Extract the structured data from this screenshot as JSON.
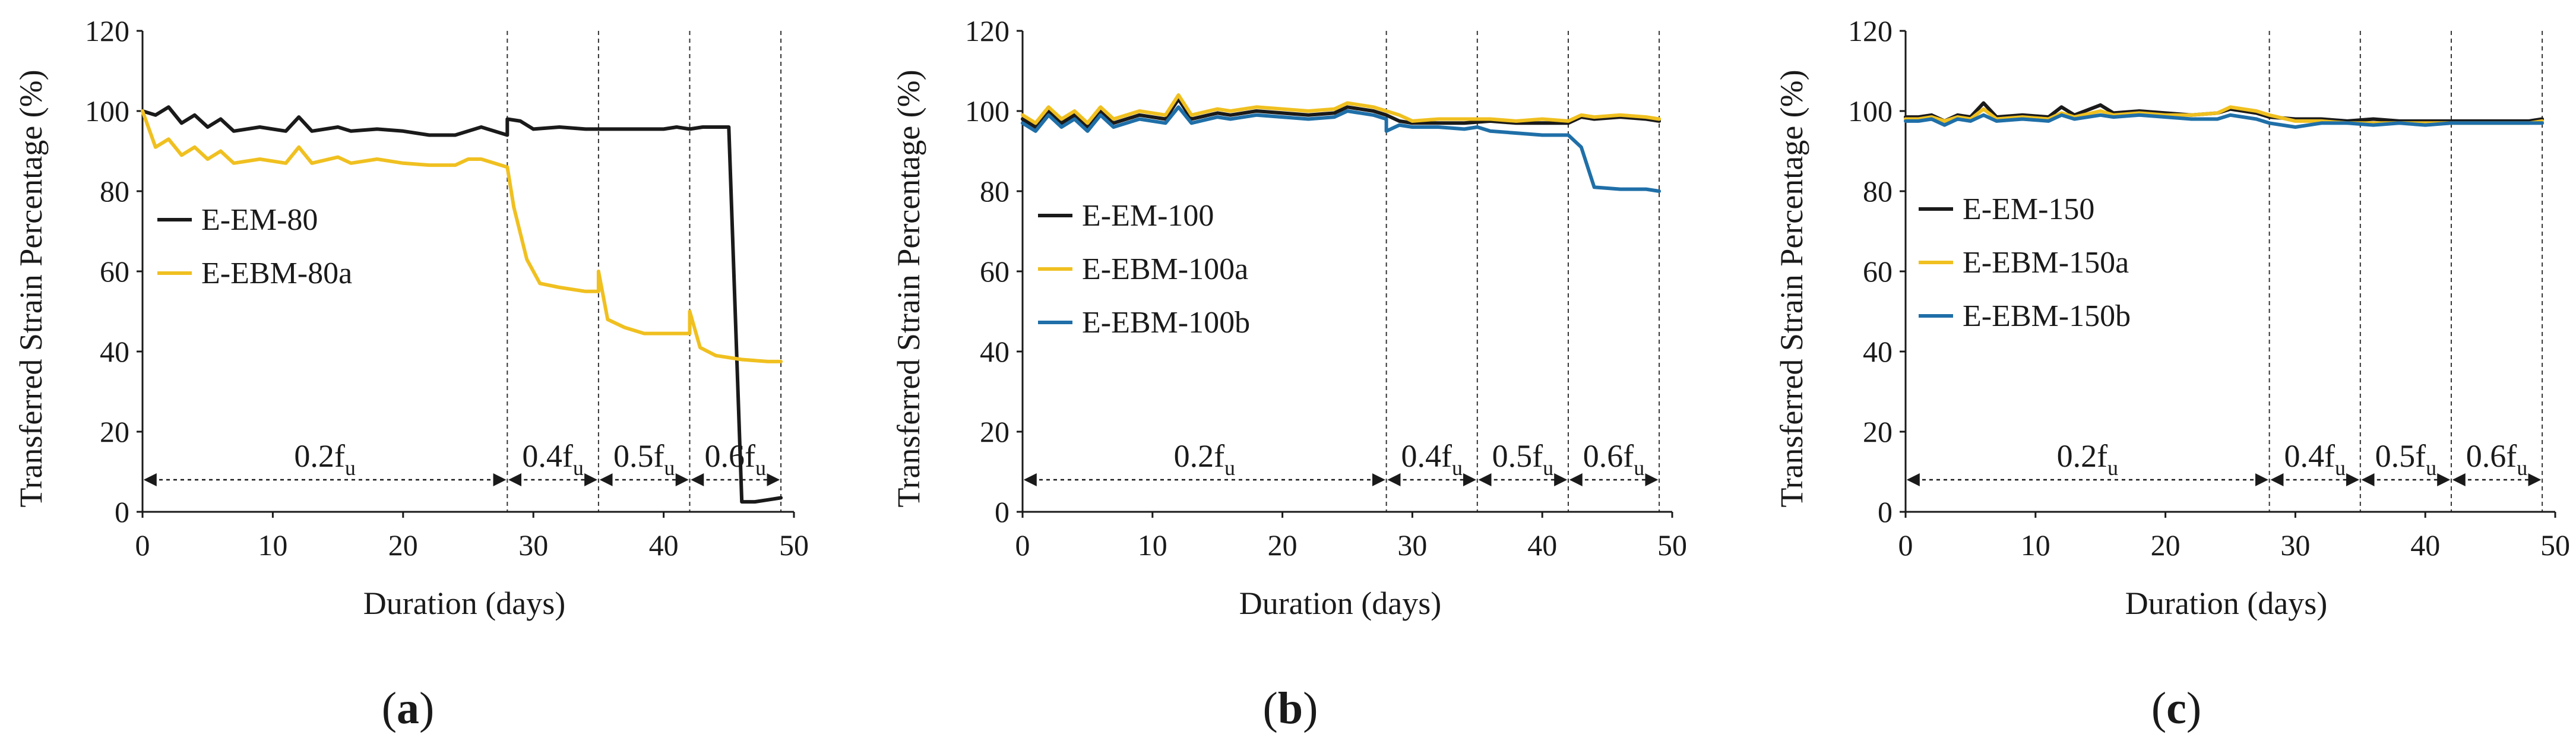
{
  "chart_data": [
    {
      "type": "line",
      "panel": "a",
      "panel_label": "(a)",
      "xlabel": "Duration (days)",
      "ylabel": "Transferred Strain Percentage (%)",
      "xlim": [
        0,
        50
      ],
      "ylim": [
        0,
        120
      ],
      "xticks": [
        0,
        10,
        20,
        30,
        40,
        50
      ],
      "yticks": [
        0,
        20,
        40,
        60,
        80,
        100,
        120
      ],
      "legend_position": "middle-left",
      "stage_boundaries": [
        28,
        35,
        42,
        49
      ],
      "stages": [
        {
          "label": "0.2f",
          "sub": "u",
          "from": 0,
          "to": 28
        },
        {
          "label": "0.4f",
          "sub": "u",
          "from": 28,
          "to": 35
        },
        {
          "label": "0.5f",
          "sub": "u",
          "from": 35,
          "to": 42
        },
        {
          "label": "0.6f",
          "sub": "u",
          "from": 42,
          "to": 49
        }
      ],
      "stage_arrow_y": 8,
      "series": [
        {
          "name": "E-EM-80",
          "color": "#1a1a1a",
          "x": [
            0,
            1,
            2,
            3,
            4,
            5,
            6,
            7,
            9,
            11,
            12,
            13,
            15,
            16,
            18,
            20,
            22,
            24,
            25,
            26,
            28,
            28,
            29,
            30,
            32,
            34,
            36,
            38,
            40,
            41,
            42,
            43,
            45,
            46,
            47,
            48,
            49
          ],
          "y": [
            100,
            99,
            101,
            97,
            99,
            96,
            98,
            95,
            96,
            95,
            98.5,
            95,
            96,
            95,
            95.5,
            95,
            94,
            94,
            95,
            96,
            94,
            98,
            97.5,
            95.5,
            96,
            95.5,
            95.5,
            95.5,
            95.5,
            96,
            95.5,
            96,
            96,
            2.5,
            2.5,
            3,
            3.5
          ]
        },
        {
          "name": "E-EBM-80a",
          "color": "#f0c020",
          "x": [
            0,
            1,
            2,
            3,
            4,
            5,
            6,
            7,
            9,
            11,
            12,
            13,
            15,
            16,
            18,
            20,
            22,
            24,
            25,
            26,
            28,
            28.5,
            29.5,
            30.5,
            32,
            34,
            35,
            35,
            35.7,
            37,
            38.5,
            40,
            41,
            42,
            42,
            42.8,
            44,
            46,
            48,
            49
          ],
          "y": [
            100,
            91,
            93,
            89,
            91,
            88,
            90,
            87,
            88,
            87,
            91,
            87,
            88.5,
            87,
            88,
            87,
            86.5,
            86.5,
            88,
            88,
            86,
            76,
            63,
            57,
            56,
            55,
            55,
            60,
            48,
            46,
            44.5,
            44.5,
            44.5,
            44.5,
            50,
            41,
            39,
            38,
            37.5,
            37.5
          ]
        }
      ]
    },
    {
      "type": "line",
      "panel": "b",
      "panel_label": "(b)",
      "xlabel": "Duration (days)",
      "ylabel": "Transferred Strain Percentage (%)",
      "xlim": [
        0,
        50
      ],
      "ylim": [
        0,
        120
      ],
      "xticks": [
        0,
        10,
        20,
        30,
        40,
        50
      ],
      "yticks": [
        0,
        20,
        40,
        60,
        80,
        100,
        120
      ],
      "legend_position": "middle-left",
      "stage_boundaries": [
        28,
        35,
        42,
        49
      ],
      "stages": [
        {
          "label": "0.2f",
          "sub": "u",
          "from": 0,
          "to": 28
        },
        {
          "label": "0.4f",
          "sub": "u",
          "from": 28,
          "to": 35
        },
        {
          "label": "0.5f",
          "sub": "u",
          "from": 35,
          "to": 42
        },
        {
          "label": "0.6f",
          "sub": "u",
          "from": 42,
          "to": 49
        }
      ],
      "stage_arrow_y": 8,
      "series": [
        {
          "name": "E-EM-100",
          "color": "#1a1a1a",
          "x": [
            0,
            1,
            2,
            3,
            4,
            5,
            6,
            7,
            9,
            11,
            12,
            13,
            15,
            16,
            18,
            20,
            22,
            24,
            25,
            27,
            28,
            29,
            30,
            32,
            34,
            36,
            38,
            40,
            42,
            43,
            44,
            46,
            48,
            49
          ],
          "y": [
            98,
            96,
            100,
            97,
            99,
            96,
            100,
            97,
            99,
            98,
            103,
            98,
            99.5,
            99,
            100,
            99.5,
            99,
            99.5,
            101,
            100,
            99,
            97.5,
            97,
            97,
            97,
            97.5,
            97,
            97,
            97,
            98.5,
            98,
            98.5,
            98,
            97.5
          ]
        },
        {
          "name": "E-EBM-100a",
          "color": "#f0c020",
          "x": [
            0,
            1,
            2,
            3,
            4,
            5,
            6,
            7,
            9,
            11,
            12,
            13,
            15,
            16,
            18,
            20,
            22,
            24,
            25,
            27,
            28,
            29,
            30,
            32,
            34,
            36,
            38,
            40,
            42,
            43,
            44,
            46,
            48,
            49
          ],
          "y": [
            99,
            97,
            101,
            98,
            100,
            97,
            101,
            98,
            100,
            99,
            104,
            99,
            100.5,
            100,
            101,
            100.5,
            100,
            100.5,
            102,
            101,
            100,
            99,
            97.5,
            98,
            98,
            98,
            97.5,
            98,
            97.5,
            99,
            98.5,
            99,
            98.5,
            98
          ]
        },
        {
          "name": "E-EBM-100b",
          "color": "#1f6fa8",
          "x": [
            0,
            1,
            2,
            3,
            4,
            5,
            6,
            7,
            9,
            11,
            12,
            13,
            15,
            16,
            18,
            20,
            22,
            24,
            25,
            27,
            28,
            28,
            29,
            30,
            32,
            34,
            35,
            36,
            38,
            40,
            42,
            42,
            43,
            44,
            46,
            48,
            49
          ],
          "y": [
            97,
            95,
            99,
            96,
            98,
            95,
            99,
            96,
            98,
            97,
            101,
            97,
            98.5,
            98,
            99,
            98.5,
            98,
            98.5,
            100,
            99,
            98,
            95,
            96.5,
            96,
            96,
            95.5,
            96,
            95,
            94.5,
            94,
            94,
            94,
            91,
            81,
            80.5,
            80.5,
            80
          ]
        }
      ]
    },
    {
      "type": "line",
      "panel": "c",
      "panel_label": "(c)",
      "xlabel": "Duration (days)",
      "ylabel": "Transferred Strain Percentage (%)",
      "xlim": [
        0,
        50
      ],
      "ylim": [
        0,
        120
      ],
      "xticks": [
        0,
        10,
        20,
        30,
        40,
        50
      ],
      "yticks": [
        0,
        20,
        40,
        60,
        80,
        100,
        120
      ],
      "legend_position": "middle-left",
      "stage_boundaries": [
        28,
        35,
        42,
        49
      ],
      "stages": [
        {
          "label": "0.2f",
          "sub": "u",
          "from": 0,
          "to": 28
        },
        {
          "label": "0.4f",
          "sub": "u",
          "from": 28,
          "to": 35
        },
        {
          "label": "0.5f",
          "sub": "u",
          "from": 35,
          "to": 42
        },
        {
          "label": "0.6f",
          "sub": "u",
          "from": 42,
          "to": 49
        }
      ],
      "stage_arrow_y": 8,
      "series": [
        {
          "name": "E-EM-150",
          "color": "#1a1a1a",
          "x": [
            0,
            1,
            2,
            3,
            4,
            5,
            6,
            7,
            9,
            11,
            12,
            13,
            15,
            16,
            18,
            20,
            22,
            24,
            25,
            27,
            28,
            30,
            32,
            34,
            36,
            38,
            40,
            42,
            44,
            46,
            48,
            49
          ],
          "y": [
            98.5,
            98.5,
            99,
            97.5,
            99,
            98.5,
            102,
            98.5,
            99,
            98.5,
            101,
            99,
            101.5,
            99.5,
            100,
            99.5,
            99,
            99.5,
            100.5,
            99.5,
            98.5,
            98,
            98,
            97.5,
            98,
            97.5,
            97.5,
            97.5,
            97.5,
            97.5,
            97.5,
            98
          ]
        },
        {
          "name": "E-EBM-150a",
          "color": "#f0c020",
          "x": [
            0,
            1,
            2,
            3,
            4,
            5,
            6,
            7,
            9,
            11,
            12,
            13,
            15,
            16,
            18,
            20,
            22,
            24,
            25,
            27,
            28,
            30,
            32,
            34,
            36,
            38,
            40,
            42,
            44,
            46,
            48,
            49
          ],
          "y": [
            98,
            98,
            98.5,
            97.5,
            98.5,
            98,
            100.5,
            98,
            98.5,
            98,
            99.5,
            98.5,
            100,
            99,
            99.5,
            99,
            99,
            99.5,
            101,
            100,
            99,
            97.5,
            97.5,
            97,
            97,
            97,
            97,
            97,
            97,
            97,
            97,
            97.5
          ]
        },
        {
          "name": "E-EBM-150b",
          "color": "#1f6fa8",
          "x": [
            0,
            1,
            2,
            3,
            4,
            5,
            6,
            7,
            9,
            11,
            12,
            13,
            15,
            16,
            18,
            20,
            22,
            24,
            25,
            27,
            28,
            30,
            32,
            34,
            36,
            38,
            40,
            42,
            44,
            46,
            48,
            49
          ],
          "y": [
            97.5,
            97.5,
            98,
            96.5,
            98,
            97.5,
            99,
            97.5,
            98,
            97.5,
            99,
            98,
            99,
            98.5,
            99,
            98.5,
            98,
            98,
            99,
            98,
            97,
            96,
            97,
            97,
            96.5,
            97,
            96.5,
            97,
            97,
            97,
            97,
            97
          ]
        }
      ]
    }
  ]
}
